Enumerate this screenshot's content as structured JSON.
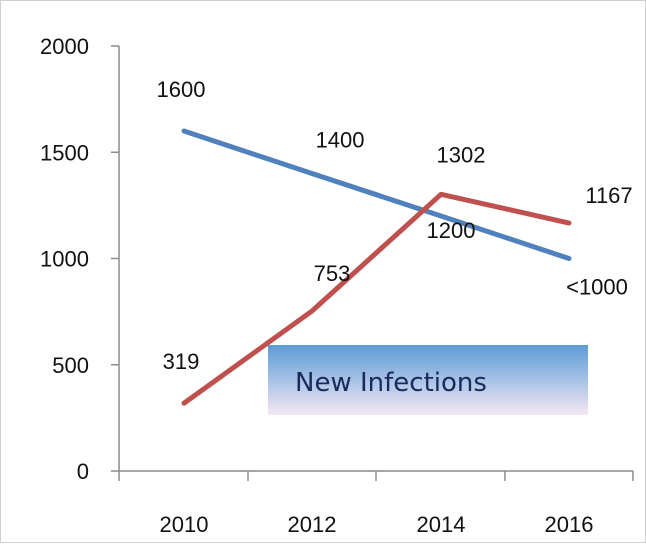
{
  "chart_data": {
    "type": "line",
    "title": "",
    "xlabel": "",
    "ylabel": "",
    "x": [
      "2010",
      "2012",
      "2014",
      "2016"
    ],
    "ylim": [
      0,
      2000
    ],
    "yticks": [
      "0",
      "500",
      "1000",
      "1500",
      "2000"
    ],
    "grid": false,
    "series": [
      {
        "values": [
          1600,
          1400,
          1200,
          1000
        ],
        "labels": [
          "1600",
          "1400",
          "1200",
          "<1000"
        ],
        "color": "#4f81bd"
      },
      {
        "values": [
          319,
          753,
          1302,
          1167
        ],
        "labels": [
          "319",
          "753",
          "1302",
          "1167"
        ],
        "color": "#c0504d"
      }
    ],
    "annotation": {
      "text": "New Infections",
      "box_color_top": "#5b9bd5",
      "box_color_bottom": "#f4e8f4"
    }
  }
}
